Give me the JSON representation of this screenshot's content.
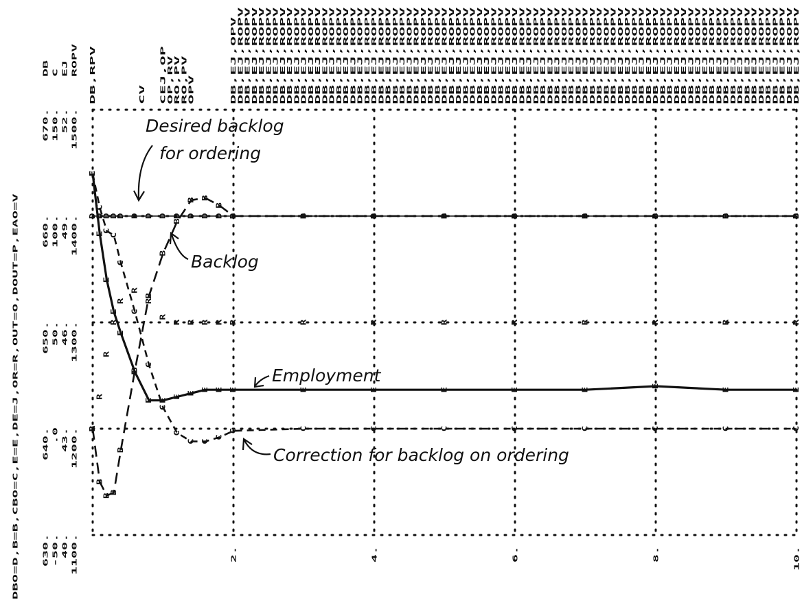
{
  "chart_data": {
    "type": "line",
    "legend_text": "DBO=D,B=B,CBO=C,E=E,DE=J,OR=R,OUT=O,DOUT=P,EAO=V",
    "xlim": [
      0,
      10
    ],
    "xticks": [
      {
        "value": 2,
        "label": "2."
      },
      {
        "value": 4,
        "label": "4."
      },
      {
        "value": 6,
        "label": "6."
      },
      {
        "value": 8,
        "label": "8."
      },
      {
        "value": 10,
        "label": "10."
      }
    ],
    "scales": [
      {
        "name": "DB",
        "ylim": [
          630,
          670
        ],
        "yticks": [
          {
            "value": 630,
            "label": "630."
          },
          {
            "value": 640,
            "label": "640."
          },
          {
            "value": 650,
            "label": "650."
          },
          {
            "value": 660,
            "label": "660."
          },
          {
            "value": 670,
            "label": "670."
          }
        ]
      },
      {
        "name": "C",
        "ylim": [
          -50,
          150
        ],
        "yticks": [
          {
            "value": -50,
            "label": "-50."
          },
          {
            "value": 0,
            "label": ".0"
          },
          {
            "value": 50,
            "label": "50."
          },
          {
            "value": 100,
            "label": "100."
          },
          {
            "value": 150,
            "label": "150."
          }
        ]
      },
      {
        "name": "EJ",
        "ylim": [
          40,
          52
        ],
        "yticks": [
          {
            "value": 40,
            "label": "40."
          },
          {
            "value": 43,
            "label": "43."
          },
          {
            "value": 46,
            "label": "46."
          },
          {
            "value": 49,
            "label": "49."
          },
          {
            "value": 52,
            "label": "52."
          }
        ]
      },
      {
        "name": "ROPV",
        "ylim": [
          1100,
          1500
        ],
        "yticks": [
          {
            "value": 1100,
            "label": "1100."
          },
          {
            "value": 1200,
            "label": "1200."
          },
          {
            "value": 1300,
            "label": "1300."
          },
          {
            "value": 1400,
            "label": "1400."
          },
          {
            "value": 1500,
            "label": "1500."
          }
        ]
      }
    ],
    "x": [
      0,
      0.1,
      0.2,
      0.3,
      0.4,
      0.6,
      0.8,
      1,
      1.2,
      1.4,
      1.6,
      1.8,
      2,
      3,
      4,
      5,
      6,
      7,
      8,
      9,
      10
    ],
    "series": [
      {
        "symbol": "E",
        "scale": 2,
        "line": "solid",
        "values": [
          50.2,
          48.5,
          47.2,
          46.3,
          45.7,
          44.6,
          43.8,
          43.8,
          43.9,
          44,
          44.1,
          44.1,
          44.1,
          44.1,
          44.1,
          44.1,
          44.1,
          44.1,
          44.2,
          44.1,
          44.1
        ]
      },
      {
        "symbol": "B",
        "scale": 0,
        "line": "longdash",
        "values": [
          640,
          635,
          633.7,
          634,
          638,
          645.5,
          652.5,
          656.5,
          659.5,
          661.5,
          661.7,
          661,
          660,
          660,
          660,
          660,
          660,
          660,
          660,
          660,
          660
        ]
      },
      {
        "symbol": "C",
        "scale": 1,
        "line": "dash",
        "values": [
          120,
          104,
          93,
          91,
          78,
          55,
          30,
          10,
          -2,
          -6,
          -6,
          -4,
          -1,
          0,
          0,
          0,
          0,
          0,
          0,
          0,
          0
        ]
      },
      {
        "symbol": "D",
        "scale": 0,
        "line": "thin",
        "values": [
          660,
          660,
          660,
          660,
          660,
          660,
          660,
          660,
          660,
          660,
          660,
          660,
          660,
          660,
          660,
          660,
          660,
          660,
          660,
          660,
          660
        ]
      },
      {
        "symbol": "R",
        "scale": 3,
        "line": "none",
        "values": [
          1200,
          1230,
          1270,
          1300,
          1320,
          1330,
          1320,
          1305,
          1300,
          1300,
          1300,
          1300,
          1300,
          1300,
          1300,
          1300,
          1300,
          1300,
          1300,
          1300,
          1300
        ]
      }
    ],
    "overlap_notes": [
      "DB,RPV",
      null,
      null,
      null,
      null,
      null,
      null,
      "CV",
      null,
      null,
      "CEJ,OP",
      "OP,RV",
      "RO,PV",
      "RO,PV",
      "OPV",
      null,
      null,
      null,
      null,
      null,
      "DB,EJ,OPV",
      "DB,EJ,ROPV",
      "DB,EJ,ROPV",
      "DB,EJ,ROPV",
      "DB,EJ,ROPV",
      "DB,EJ,ROPV",
      "DB,EJ,ROPV",
      "DB,EJ,ROPV",
      "DB,EJ,ROPV",
      "DB,EJ,ROPV",
      "DB,EJ,ROPV",
      "DB,EJ,ROPV",
      "DB,EJ,ROPV",
      "DB,EJ,ROPV",
      "DB,EJ,ROPV",
      "DB,EJ,ROPV",
      "DB,EJ,ROPV",
      "DB,EJ,ROPV",
      "DB,EJ,ROPV",
      "DB,EJ,ROPV",
      "DB,EJ,ROPV",
      "DB,EJ,ROPV",
      "DB,EJ,ROPV",
      "DB,EJ,ROPV",
      "DB,EJ,ROPV",
      "DB,EJ,ROPV",
      "DB,EJ,ROPV",
      "DB,EJ,ROPV",
      "DB,EJ,ROPV",
      "DB,EJ,ROPV",
      "DB,EJ,ROPV",
      "DB,EJ,ROPV",
      "DB,EJ,ROPV",
      "DB,EJ,ROPV",
      "DB,EJ,ROPV",
      "DB,EJ,ROPV",
      "DB,EJ,ROPV",
      "DB,EJ,ROPV",
      "DB,EJ,ROPV",
      "DB,EJ,ROPV",
      "DB,EJ,ROPV",
      "DB,EJ,ROPV",
      "DB,EJ,ROPV",
      "DB,EJ,ROPV",
      "DB,EJ,ROPV",
      "DB,EJ,ROPV",
      "DB,EJ,ROPV",
      "DB,EJ,ROPV",
      "DB,EJ,ROPV",
      "DB,EJ,ROPV",
      "DB,EJ,ROPV",
      "DB,EJ,ROPV",
      "DB,EJ,ROPV",
      "DB,EJ,ROPV",
      "DB,EJ,ROPV",
      "DB,EJ,ROPV",
      "DB,EJ,ROPV",
      "DB,EJ,ROPV",
      "DB,EJ,ROPV",
      "DB,EJ,ROPV",
      "DB,EJ,ROPV",
      "DB,EJ,ROPV",
      "DB,EJ,ROPV",
      "DB,EJ,ROPV",
      "DB,EJ,ROPV",
      "DB,EJ,ROPV",
      "DB,EJ,ROPV",
      "DB,EJ,ROPV",
      "DB,EJ,ROPV",
      "DB,EJ,ROPV",
      "DB,EJ,ROPV",
      "DB,EJ,ROPV",
      "DB,EJ,ROPV",
      "DB,EJ,ROPV",
      "DB,EJ,ROPV",
      "DB,EJ,ROPV",
      "DB,EJ,ROPV",
      "DB,EJ,ROPV",
      "DB,EJ,ROPV",
      "DB,EJ,ROPV",
      "DB,EJ,ROPV"
    ],
    "annotations": [
      "Desired backlog",
      "for ordering",
      "Backlog",
      "Employment",
      "Correction for backlog on ordering"
    ]
  }
}
